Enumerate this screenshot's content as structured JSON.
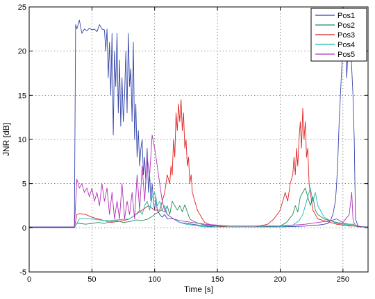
{
  "chart_data": {
    "type": "line",
    "title": "",
    "xlabel": "Time [s]",
    "ylabel": "JNR [dB]",
    "xlim": [
      0,
      270
    ],
    "ylim": [
      -5,
      25
    ],
    "xticks": [
      0,
      50,
      100,
      150,
      200,
      250
    ],
    "yticks": [
      -5,
      0,
      5,
      10,
      15,
      20,
      25
    ],
    "grid": true,
    "legend_position": "top-right",
    "series": [
      {
        "name": "Pos1",
        "color": "#3344aa",
        "x": [
          0,
          36,
          37,
          38,
          40,
          42,
          44,
          46,
          48,
          50,
          52,
          54,
          56,
          58,
          60,
          61,
          62,
          63,
          64,
          65,
          66,
          67,
          68,
          69,
          70,
          71,
          72,
          73,
          74,
          75,
          76,
          77,
          78,
          79,
          80,
          81,
          82,
          83,
          84,
          85,
          86,
          87,
          88,
          89,
          90,
          91,
          92,
          93,
          94,
          95,
          96,
          97,
          98,
          99,
          100,
          101,
          102,
          104,
          106,
          108,
          110,
          115,
          120,
          130,
          140,
          150,
          160,
          180,
          200,
          220,
          230,
          235,
          238,
          240,
          242,
          244,
          245,
          246,
          247,
          248,
          249,
          250,
          251,
          252,
          253,
          254,
          255,
          256,
          257,
          258,
          259,
          260,
          262,
          265,
          270
        ],
        "y": [
          0.1,
          0.1,
          23,
          22.5,
          23.5,
          22,
          22.5,
          22.3,
          22.6,
          22.4,
          22.5,
          22.2,
          23,
          22.5,
          22.4,
          20,
          22.5,
          17,
          21,
          15,
          22,
          10.5,
          20,
          16,
          22,
          13,
          19,
          11.5,
          17,
          12,
          15,
          20,
          13,
          22,
          16,
          18,
          12,
          21,
          10,
          14,
          8,
          11,
          7,
          9,
          10,
          6,
          8,
          5,
          9,
          4,
          6,
          3,
          5,
          3,
          2,
          3.5,
          2,
          1.5,
          1.2,
          1.5,
          1,
          1,
          0.6,
          0.4,
          0.2,
          0.1,
          0.1,
          0.1,
          0.1,
          0.2,
          0.3,
          0.4,
          0.5,
          0.8,
          1.5,
          3,
          5,
          8,
          12,
          15,
          18,
          20,
          19,
          21,
          17,
          20,
          19,
          21,
          18,
          15,
          10,
          1,
          0.2,
          0.1,
          0.1
        ]
      },
      {
        "name": "Pos2",
        "color": "#1f8a5a",
        "x": [
          0,
          36,
          38,
          40,
          45,
          50,
          55,
          60,
          65,
          70,
          75,
          80,
          85,
          90,
          95,
          100,
          105,
          108,
          110,
          112,
          114,
          116,
          118,
          120,
          122,
          124,
          126,
          128,
          130,
          135,
          140,
          150,
          160,
          180,
          200,
          205,
          210,
          212,
          214,
          216,
          218,
          220,
          222,
          224,
          226,
          228,
          230,
          235,
          240,
          245,
          250,
          255,
          258,
          260,
          262,
          265,
          270
        ],
        "y": [
          0,
          0,
          0.5,
          0.5,
          0.4,
          0.5,
          0.6,
          0.5,
          0.7,
          0.8,
          0.6,
          0.7,
          0.9,
          0.8,
          1,
          1.5,
          2,
          1.8,
          2.5,
          1.5,
          3,
          2.5,
          2,
          2.5,
          1.8,
          2.6,
          1.8,
          1,
          0.8,
          0.5,
          0.3,
          0.2,
          0.1,
          0.1,
          0.2,
          0.6,
          1.5,
          2.5,
          1.8,
          3.5,
          4,
          4.5,
          3.5,
          2.5,
          3.5,
          2,
          1.5,
          1,
          0.8,
          0.6,
          0.5,
          0.4,
          0.4,
          0.2,
          0.1,
          0.1,
          0.1
        ]
      },
      {
        "name": "Pos3",
        "color": "#e02020",
        "x": [
          0,
          36,
          38,
          40,
          45,
          50,
          55,
          60,
          65,
          70,
          75,
          80,
          85,
          90,
          95,
          100,
          104,
          106,
          108,
          110,
          112,
          113,
          114,
          115,
          116,
          117,
          118,
          119,
          120,
          121,
          122,
          123,
          124,
          125,
          126,
          127,
          128,
          129,
          130,
          132,
          134,
          136,
          138,
          140,
          145,
          150,
          160,
          170,
          180,
          190,
          195,
          200,
          202,
          204,
          206,
          208,
          210,
          211,
          212,
          213,
          214,
          215,
          216,
          217,
          218,
          219,
          220,
          221,
          222,
          223,
          224,
          226,
          228,
          230,
          235,
          240,
          245,
          250,
          255,
          260,
          265,
          270
        ],
        "y": [
          0,
          0,
          1.5,
          1.6,
          1.5,
          1.2,
          1,
          0.8,
          0.6,
          0.7,
          0.8,
          1,
          1.5,
          2,
          2.5,
          2,
          2,
          3,
          4,
          6,
          5,
          7,
          6,
          10,
          8,
          13,
          11,
          14,
          12,
          14.5,
          11,
          13,
          9,
          10,
          7,
          8,
          5,
          6,
          4,
          3,
          2,
          1.5,
          1,
          0.6,
          0.3,
          0.2,
          0.1,
          0.1,
          0.1,
          0.4,
          1,
          2,
          3,
          4,
          3,
          5,
          6,
          8,
          6,
          9,
          7,
          10,
          12,
          9,
          13.5,
          10,
          12,
          8,
          9,
          5,
          4,
          2,
          1.5,
          1,
          0.8,
          0.6,
          0.4,
          0.3,
          0.2,
          0.2,
          0.1,
          0.1
        ]
      },
      {
        "name": "Pos4",
        "color": "#17b8b0",
        "x": [
          0,
          36,
          40,
          50,
          60,
          70,
          80,
          85,
          88,
          90,
          92,
          94,
          96,
          98,
          100,
          102,
          104,
          106,
          108,
          110,
          115,
          120,
          125,
          130,
          135,
          140,
          150,
          160,
          200,
          210,
          215,
          218,
          220,
          222,
          224,
          226,
          228,
          230,
          232,
          235,
          240,
          245,
          250,
          255,
          260,
          270
        ],
        "y": [
          0,
          0,
          1,
          1,
          0.8,
          0.9,
          1,
          1.5,
          2,
          1.5,
          2.5,
          3,
          2,
          3.5,
          4,
          2.5,
          3,
          2,
          2.5,
          1.5,
          1,
          0.6,
          0.4,
          0.3,
          0.2,
          0.1,
          0.1,
          0.1,
          0.1,
          0.3,
          0.8,
          1.5,
          2.5,
          3.5,
          4.5,
          3,
          4,
          2.5,
          2,
          1.2,
          0.8,
          0.5,
          0.4,
          0.3,
          0.2,
          0.1
        ]
      },
      {
        "name": "Pos5",
        "color": "#b030b8",
        "x": [
          0,
          36,
          38,
          40,
          42,
          44,
          46,
          48,
          50,
          52,
          54,
          56,
          58,
          60,
          62,
          64,
          66,
          68,
          70,
          72,
          74,
          76,
          78,
          80,
          82,
          84,
          86,
          88,
          90,
          92,
          94,
          96,
          98,
          100,
          102,
          104,
          106,
          108,
          110,
          115,
          120,
          130,
          140,
          150,
          160,
          200,
          220,
          230,
          240,
          245,
          250,
          255,
          257,
          258,
          259,
          260,
          262,
          265,
          270
        ],
        "y": [
          0,
          0,
          5.5,
          4.5,
          5,
          4,
          4.5,
          3.5,
          4.5,
          3,
          4,
          2.5,
          5,
          3,
          4.5,
          1.5,
          4,
          1,
          3,
          1,
          5,
          1,
          3,
          1.5,
          4,
          1,
          6,
          2,
          7,
          3,
          8,
          6,
          10.5,
          9,
          7,
          5,
          3,
          2,
          1.5,
          1,
          0.8,
          0.6,
          0.4,
          0.3,
          0.2,
          0.2,
          0.4,
          0.6,
          0.8,
          1,
          0.6,
          1.5,
          4,
          1,
          0.5,
          0.3,
          0.2,
          0.1,
          0.1
        ]
      }
    ]
  }
}
